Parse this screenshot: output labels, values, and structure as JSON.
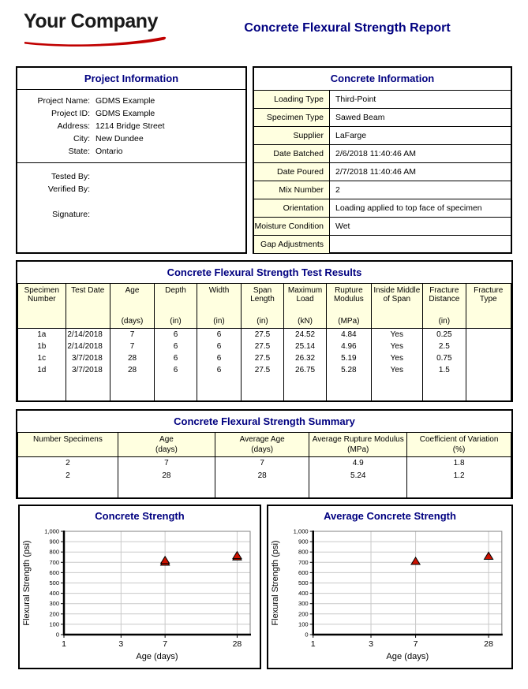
{
  "header": {
    "logo_text": "Your Company",
    "report_title": "Concrete Flexural Strength Report"
  },
  "colors": {
    "title_navy": "#000080",
    "logo_swoosh_red": "#c00000",
    "header_cell_yellow": "#ffffe0",
    "marker_red": "#cc1100"
  },
  "project_info": {
    "title": "Project Information",
    "fields": [
      {
        "label": "Project Name:",
        "value": "GDMS Example"
      },
      {
        "label": "Project ID:",
        "value": "GDMS Example"
      },
      {
        "label": "Address:",
        "value": "1214 Bridge Street"
      },
      {
        "label": "City:",
        "value": "New Dundee"
      },
      {
        "label": "State:",
        "value": "Ontario"
      }
    ],
    "signoff": [
      {
        "label": "Tested By:",
        "value": ""
      },
      {
        "label": "Verified By:",
        "value": ""
      },
      {
        "label": "Signature:",
        "value": ""
      }
    ]
  },
  "concrete_info": {
    "title": "Concrete Information",
    "rows": [
      {
        "label": "Loading Type",
        "value": "Third-Point"
      },
      {
        "label": "Specimen Type",
        "value": "Sawed Beam"
      },
      {
        "label": "Supplier",
        "value": "LaFarge"
      },
      {
        "label": "Date Batched",
        "value": "2/6/2018 11:40:46 AM"
      },
      {
        "label": "Date Poured",
        "value": "2/7/2018 11:40:46 AM"
      },
      {
        "label": "Mix Number",
        "value": "2"
      },
      {
        "label": "Orientation",
        "value": "Loading applied to top face of specimen"
      },
      {
        "label": "Moisture Condition",
        "value": "Wet"
      },
      {
        "label": "Gap Adjustments",
        "value": ""
      }
    ]
  },
  "test_results": {
    "title": "Concrete Flexural Strength Test Results",
    "columns": [
      {
        "name": "Specimen Number",
        "unit": ""
      },
      {
        "name": "Test Date",
        "unit": ""
      },
      {
        "name": "Age",
        "unit": "(days)"
      },
      {
        "name": "Depth",
        "unit": "(in)"
      },
      {
        "name": "Width",
        "unit": "(in)"
      },
      {
        "name": "Span Length",
        "unit": "(in)"
      },
      {
        "name": "Maximum Load",
        "unit": "(kN)"
      },
      {
        "name": "Rupture Modulus",
        "unit": "(MPa)"
      },
      {
        "name": "Inside Middle of Span",
        "unit": ""
      },
      {
        "name": "Fracture Distance",
        "unit": "(in)"
      },
      {
        "name": "Fracture Type",
        "unit": ""
      }
    ],
    "rows": [
      [
        "1a",
        "2/14/2018",
        "7",
        "6",
        "6",
        "27.5",
        "24.52",
        "4.84",
        "Yes",
        "0.25",
        ""
      ],
      [
        "1b",
        "2/14/2018",
        "7",
        "6",
        "6",
        "27.5",
        "25.14",
        "4.96",
        "Yes",
        "2.5",
        ""
      ],
      [
        "1c",
        "3/7/2018",
        "28",
        "6",
        "6",
        "27.5",
        "26.32",
        "5.19",
        "Yes",
        "0.75",
        ""
      ],
      [
        "1d",
        "3/7/2018",
        "28",
        "6",
        "6",
        "27.5",
        "26.75",
        "5.28",
        "Yes",
        "1.5",
        ""
      ]
    ]
  },
  "summary": {
    "title": "Concrete Flexural Strength Summary",
    "columns": [
      {
        "name": "Number Specimens",
        "unit": ""
      },
      {
        "name": "Age",
        "unit": "(days)"
      },
      {
        "name": "Average Age",
        "unit": "(days)"
      },
      {
        "name": "Average Rupture Modulus",
        "unit": "(MPa)"
      },
      {
        "name": "Coefficient of Variation",
        "unit": "(%)"
      }
    ],
    "rows": [
      [
        "2",
        "7",
        "7",
        "4.9",
        "1.8"
      ],
      [
        "2",
        "28",
        "28",
        "5.24",
        "1.2"
      ]
    ]
  },
  "chart_data": [
    {
      "type": "scatter",
      "title": "Concrete Strength",
      "xlabel": "Age (days)",
      "ylabel": "Flexural Strength (psi)",
      "x_scale": "log",
      "xlim": [
        1,
        36
      ],
      "x_ticks": [
        1,
        3,
        7,
        28
      ],
      "ylim": [
        0,
        1000
      ],
      "y_tick_step": 100,
      "grid": true,
      "legend": "none",
      "marker": "triangle",
      "marker_color": "#cc1100",
      "points": [
        [
          7,
          702
        ],
        [
          7,
          719
        ],
        [
          28,
          753
        ],
        [
          28,
          766
        ]
      ]
    },
    {
      "type": "scatter",
      "title": "Average Concrete Strength",
      "xlabel": "Age (days)",
      "ylabel": "Flexural Strength (psi)",
      "x_scale": "log",
      "xlim": [
        1,
        36
      ],
      "x_ticks": [
        1,
        3,
        7,
        28
      ],
      "ylim": [
        0,
        1000
      ],
      "y_tick_step": 100,
      "grid": true,
      "legend": "none",
      "marker": "triangle",
      "marker_color": "#cc1100",
      "points": [
        [
          7,
          710
        ],
        [
          28,
          760
        ]
      ]
    }
  ]
}
